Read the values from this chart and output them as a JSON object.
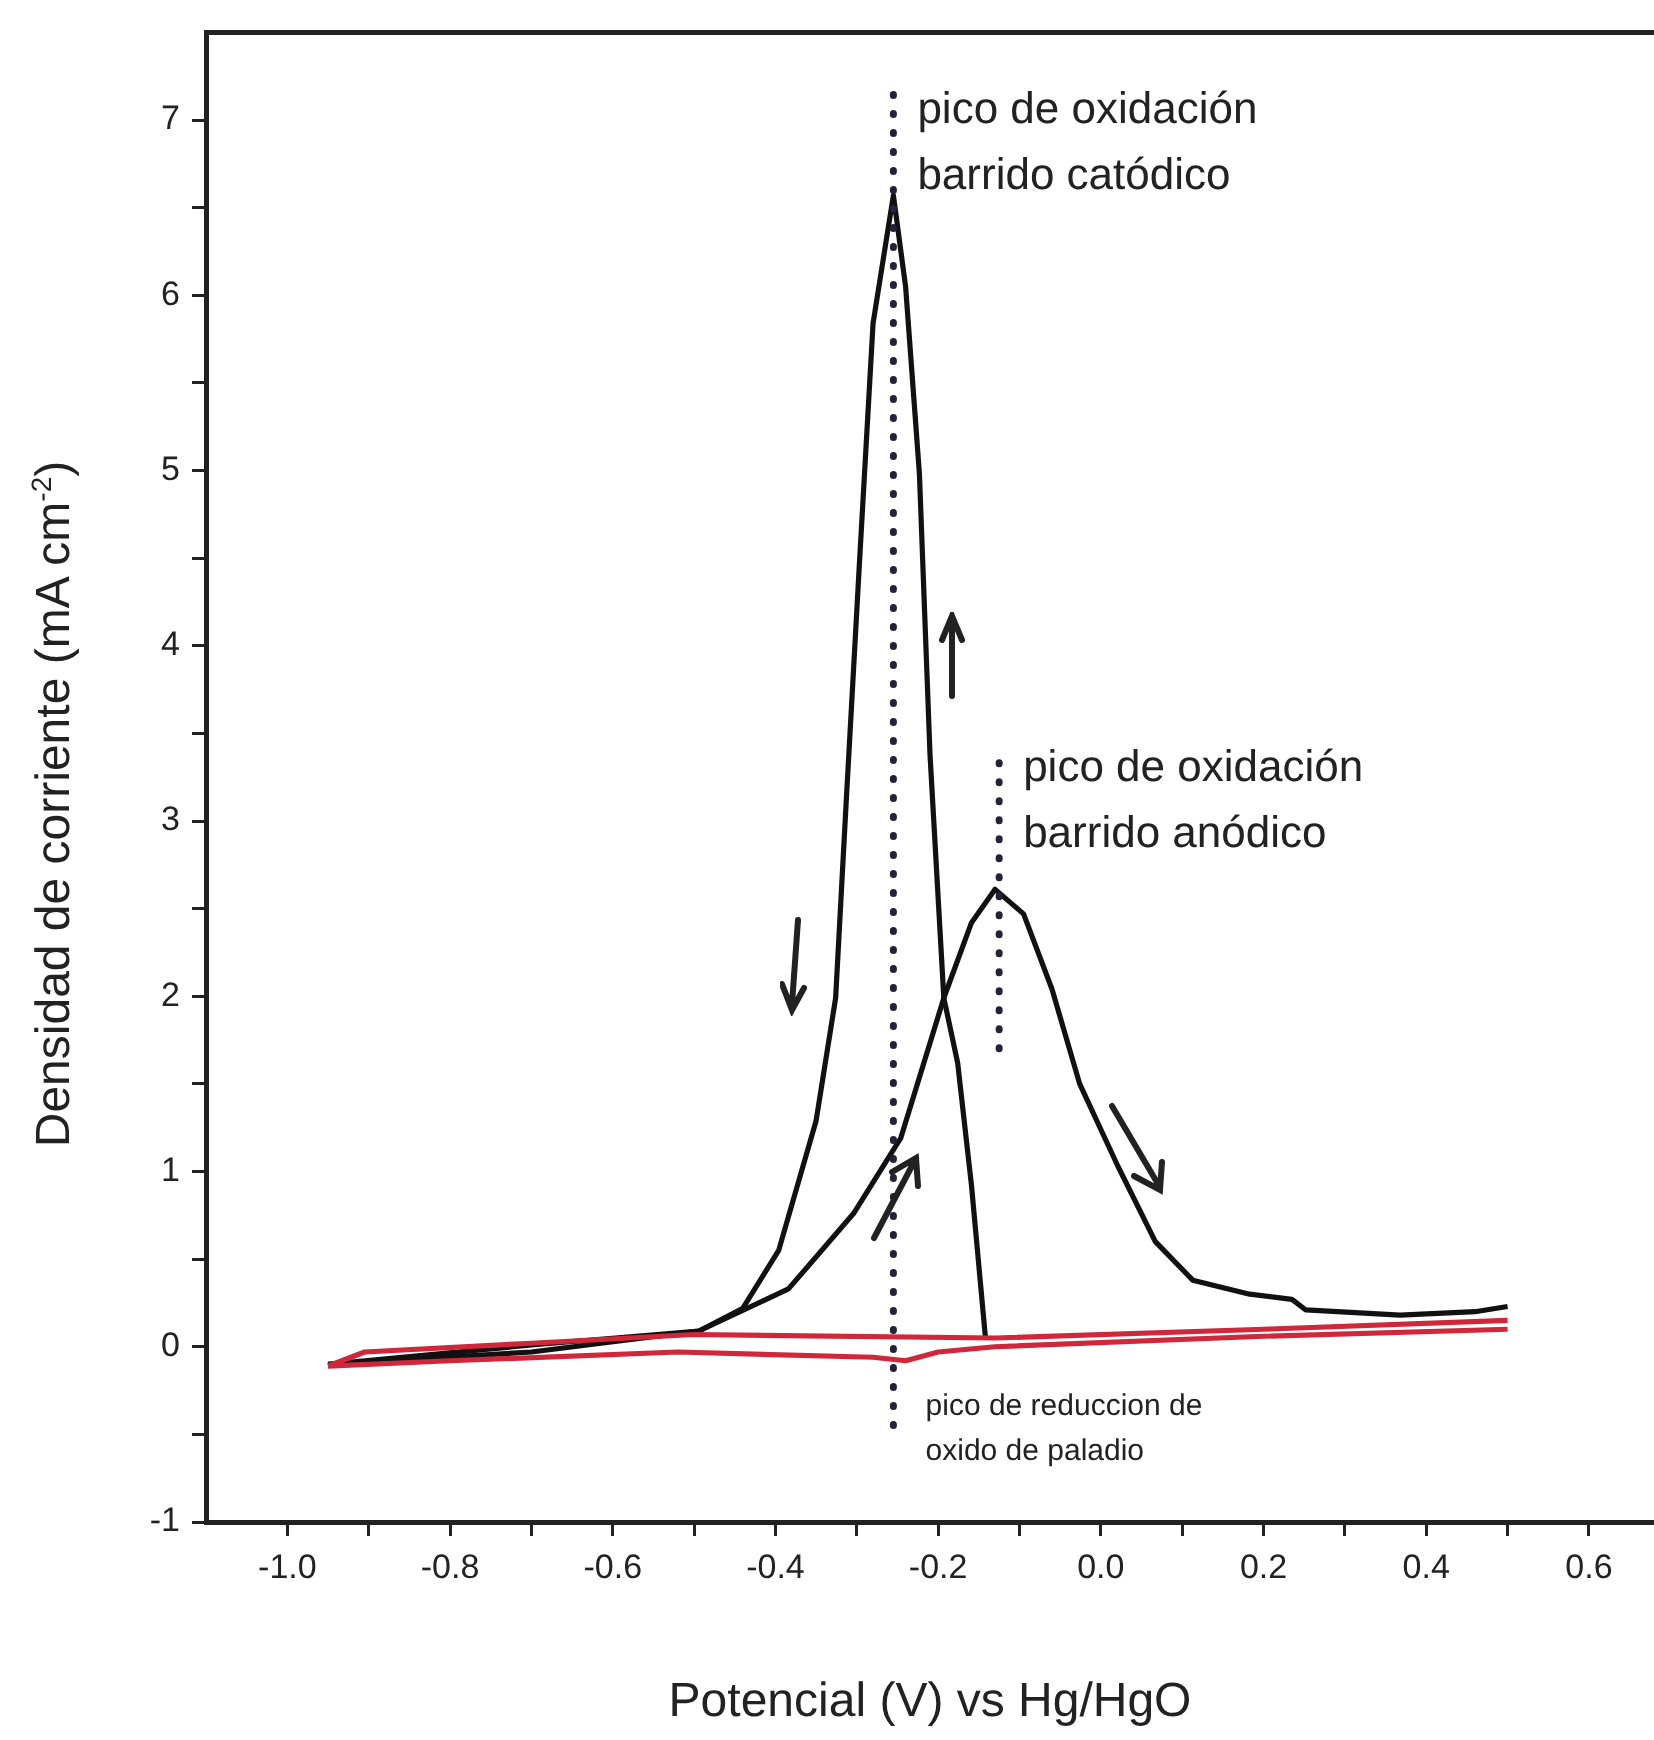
{
  "chart_data": {
    "type": "line",
    "xlabel": "Potencial (V) vs Hg/HgO",
    "ylabel": "Densidad de corriente (mA cm$^{-2}$)",
    "xlim": [
      -1.1,
      0.68
    ],
    "ylim": [
      -1,
      7.5
    ],
    "xticks": [
      {
        "value": -1,
        "label": "-1.0"
      },
      {
        "value": -0.9,
        "label": null
      },
      {
        "value": -0.8,
        "label": "-0.8"
      },
      {
        "value": -0.7,
        "label": null
      },
      {
        "value": -0.6,
        "label": "-0.6"
      },
      {
        "value": -0.5,
        "label": null
      },
      {
        "value": -0.4,
        "label": "-0.4"
      },
      {
        "value": -0.3,
        "label": null
      },
      {
        "value": -0.2,
        "label": "-0.2"
      },
      {
        "value": -0.1,
        "label": null
      },
      {
        "value": 0,
        "label": "0.0"
      },
      {
        "value": 0.1,
        "label": null
      },
      {
        "value": 0.2,
        "label": "0.2"
      },
      {
        "value": 0.3,
        "label": null
      },
      {
        "value": 0.4,
        "label": "0.4"
      },
      {
        "value": 0.5,
        "label": null
      },
      {
        "value": 0.6,
        "label": "0.6"
      }
    ],
    "yticks": [
      -1,
      {
        "value": -0.5,
        "label": null
      },
      0,
      {
        "value": 0.5,
        "label": null
      },
      1,
      {
        "value": 1.5,
        "label": null
      },
      2,
      {
        "value": 2.5,
        "label": null
      },
      3,
      {
        "value": 3.5,
        "label": null
      },
      4,
      {
        "value": 4.5,
        "label": null
      },
      5,
      {
        "value": 5.5,
        "label": null
      },
      6,
      {
        "value": 6.5,
        "label": null
      },
      7
    ],
    "marker": "none",
    "legend": false,
    "series": [
      {
        "color": "#111111",
        "x": [
          -0.95,
          -0.7,
          -0.494,
          -0.384,
          -0.304,
          -0.246,
          -0.193,
          -0.159,
          -0.13,
          -0.095,
          -0.06,
          -0.026,
          0.021,
          0.067,
          0.113,
          0.183,
          0.235,
          0.252,
          0.368,
          0.46,
          0.5
        ],
        "values": [
          -0.1,
          -0.03,
          0.09,
          0.33,
          0.76,
          1.19,
          1.99,
          2.42,
          2.61,
          2.47,
          2.04,
          1.5,
          1.03,
          0.6,
          0.38,
          0.3,
          0.27,
          0.21,
          0.18,
          0.2,
          0.23
        ]
      },
      {
        "color": "#111111",
        "x": [
          -0.95,
          -0.7,
          -0.494,
          -0.44,
          -0.396,
          -0.35,
          -0.326,
          -0.313,
          -0.297,
          -0.28,
          -0.255,
          -0.24,
          -0.223,
          -0.21,
          -0.193,
          -0.176,
          -0.159,
          -0.142
        ],
        "values": [
          -0.1,
          0.01,
          0.09,
          0.22,
          0.55,
          1.29,
          1.99,
          3.11,
          4.45,
          5.84,
          6.57,
          6.05,
          4.98,
          3.38,
          1.99,
          1.62,
          0.92,
          0.06
        ]
      },
      {
        "color": "#d0283a",
        "x": [
          -0.95,
          -0.905,
          -0.7,
          -0.5,
          -0.13,
          0.2,
          0.5
        ],
        "values": [
          -0.11,
          -0.03,
          0.02,
          0.07,
          0.05,
          0.1,
          0.15
        ]
      },
      {
        "color": "#d0283a",
        "x": [
          -0.95,
          -0.8,
          -0.52,
          -0.28,
          -0.24,
          -0.2,
          -0.13,
          0.2,
          0.5
        ],
        "values": [
          -0.11,
          -0.08,
          -0.03,
          -0.06,
          -0.08,
          -0.03,
          0.0,
          0.06,
          0.1
        ]
      },
      {
        "color": "#22223a",
        "line_style": "dotted",
        "x": [
          -0.255,
          -0.255
        ],
        "values": [
          -0.45,
          7.2
        ]
      },
      {
        "color": "#22223a",
        "line_style": "dotted",
        "x": [
          -0.125,
          -0.125
        ],
        "values": [
          1.7,
          3.4
        ]
      }
    ],
    "annotations": [
      {
        "text": "pico de oxidación\nbarrido catódico",
        "x": -0.255,
        "y": 7.05
      },
      {
        "text": "pico de oxidación\nbarrido anódico",
        "x": -0.125,
        "y": 3.3
      },
      {
        "text": "pico de reduccion de\noxido de paladio",
        "x": -0.245,
        "y": -0.34
      }
    ]
  }
}
